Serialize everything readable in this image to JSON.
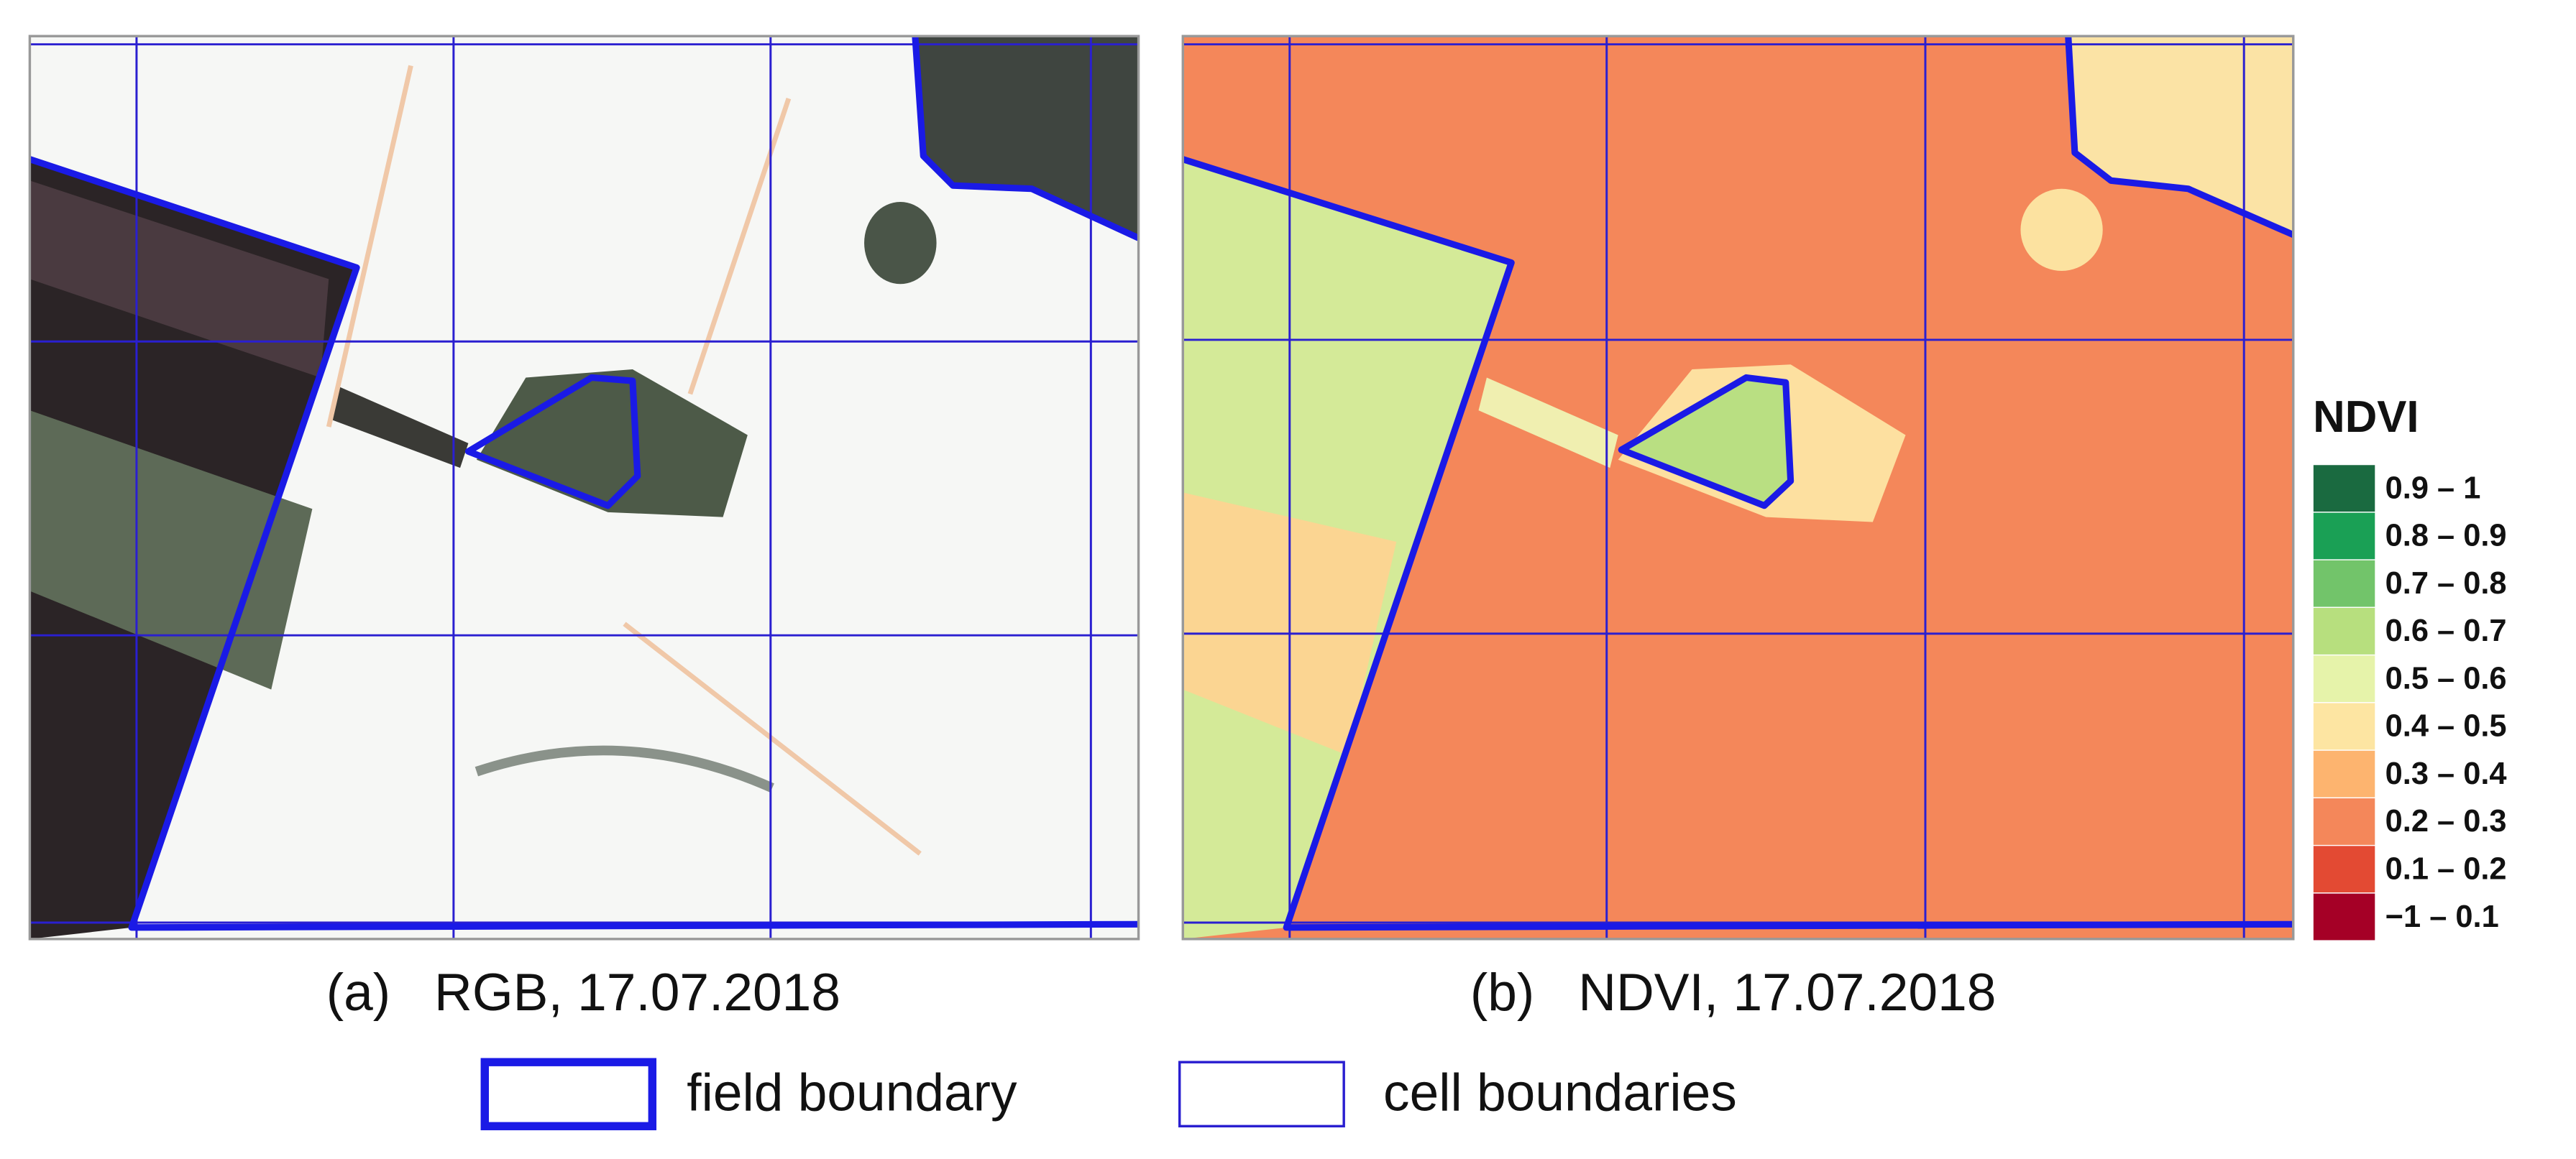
{
  "panels": [
    {
      "caption": "(a)   RGB, 17.07.2018"
    },
    {
      "caption": "(b)   NDVI, 17.07.2018"
    }
  ],
  "ndvi_legend": {
    "title": "NDVI",
    "classes": [
      {
        "label": "0.9 – 1",
        "color": "#1a6a40"
      },
      {
        "label": "0.8 – 0.9",
        "color": "#1aa055"
      },
      {
        "label": "0.7 – 0.8",
        "color": "#72c46a"
      },
      {
        "label": "0.6 – 0.7",
        "color": "#b7df7e"
      },
      {
        "label": "0.5 – 0.6",
        "color": "#e6f3aa"
      },
      {
        "label": "0.4 – 0.5",
        "color": "#fde5a2"
      },
      {
        "label": "0.3 – 0.4",
        "color": "#fdb46f"
      },
      {
        "label": "0.2 – 0.3",
        "color": "#f4875a"
      },
      {
        "label": "0.1 – 0.2",
        "color": "#e34a33"
      },
      {
        "label": "−1 – 0.1",
        "color": "#a50026"
      }
    ]
  },
  "boundary_legend": [
    {
      "label": "field boundary"
    },
    {
      "label": "cell boundaries"
    }
  ]
}
